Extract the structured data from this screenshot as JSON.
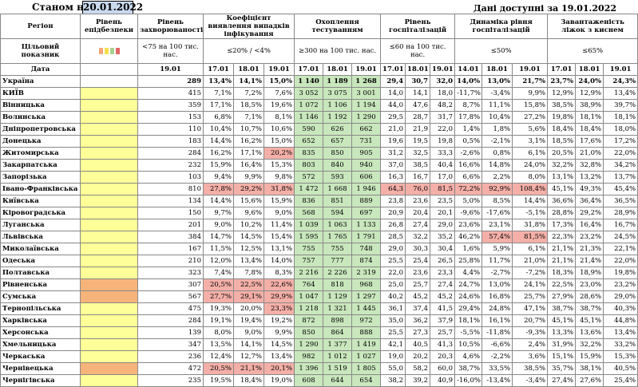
{
  "header": {
    "as_of_label": "Станом на",
    "as_of_date": "20.01.2022",
    "available_label": "Дані доступні за  19.01.2022"
  },
  "columns": {
    "region": "Регіон",
    "epi_level": "Рівень епідбезпеки",
    "incidence": "Рівень захворюваності",
    "detection": "Коефіцієнт виявлення випадків інфікування",
    "testing": "Охоплення тестуванням",
    "hosp": "Рівень госпіталізацій",
    "hosp_dyn": "Динаміка рівня госпіталізацій",
    "oxygen": "Завантаженість ліжок з киснем"
  },
  "targets": {
    "label": "Цільовий показник",
    "incidence": "<75 на 100 тис. нас.",
    "detection": "≤20% / <4%",
    "testing": "≥300 на 100 тис. нас.",
    "hosp": "≤60 на 100 тис. нас.",
    "hosp_dyn": "≤50%",
    "oxygen": "≤65%"
  },
  "legend_colors": [
    "#f3a77a",
    "#f4e04d",
    "#a9d08e",
    "#e06666"
  ],
  "dates_label": "Дата",
  "dates": {
    "incidence": "19.01",
    "three": [
      "17.01",
      "18.01",
      "19.01"
    ],
    "hosp_dyn": [
      "14.01",
      "18.01",
      "19.01"
    ]
  },
  "rows": [
    {
      "name": "Україна",
      "epi": "",
      "inc": "289",
      "det": [
        "13,4%",
        "14,1%",
        "15,0%"
      ],
      "test": [
        "1 140",
        "1 189",
        "1 268"
      ],
      "hosp": [
        "29,4",
        "30,7",
        "32,0"
      ],
      "dyn": [
        "14,0%",
        "13,0%",
        "21,7%"
      ],
      "oxy": [
        "23,7%",
        "24,0%",
        "24,3%"
      ]
    },
    {
      "name": "КИЇВ",
      "epi": "y",
      "inc": "415",
      "det": [
        "7,1%",
        "7,2%",
        "7,6%"
      ],
      "test": [
        "3 052",
        "3 075",
        "3 001"
      ],
      "hosp": [
        "14,0",
        "14,1",
        "18,0"
      ],
      "dyn": [
        "-11,7%",
        "-3,4%",
        "9,9%"
      ],
      "oxy": [
        "12,9%",
        "12,9%",
        "13,4%"
      ]
    },
    {
      "name": "Вінницька",
      "epi": "y",
      "inc": "359",
      "det": [
        "17,1%",
        "18,5%",
        "19,6%"
      ],
      "test": [
        "1 072",
        "1 106",
        "1 194"
      ],
      "hosp": [
        "44,0",
        "47,6",
        "48,2"
      ],
      "dyn": [
        "8,7%",
        "11,1%",
        "15,8%"
      ],
      "oxy": [
        "38,5%",
        "38,9%",
        "39,7%"
      ]
    },
    {
      "name": "Волинська",
      "epi": "y",
      "inc": "153",
      "det": [
        "6,8%",
        "7,1%",
        "8,1%"
      ],
      "test": [
        "1 146",
        "1 192",
        "1 290"
      ],
      "hosp": [
        "29,5",
        "28,7",
        "31,7"
      ],
      "dyn": [
        "17,8%",
        "10,4%",
        "27,2%"
      ],
      "oxy": [
        "19,8%",
        "18,1%",
        "18,1%"
      ]
    },
    {
      "name": "Дніпропетровська",
      "epi": "y",
      "inc": "110",
      "det": [
        "10,4%",
        "10,7%",
        "10,6%"
      ],
      "test": [
        "590",
        "626",
        "662"
      ],
      "hosp": [
        "21,0",
        "21,9",
        "22,0"
      ],
      "dyn": [
        "1,4%",
        "1,8%",
        "5,6%"
      ],
      "oxy": [
        "18,4%",
        "18,4%",
        "18,0%"
      ]
    },
    {
      "name": "Донецька",
      "epi": "y",
      "inc": "183",
      "det": [
        "14,4%",
        "16,2%",
        "15,0%"
      ],
      "test": [
        "652",
        "657",
        "731"
      ],
      "hosp": [
        "19,6",
        "19,5",
        "19,8"
      ],
      "dyn": [
        "0,5%",
        "-2,1%",
        "3,1%"
      ],
      "oxy": [
        "18,5%",
        "17,6%",
        "17,2%"
      ]
    },
    {
      "name": "Житомирська",
      "epi": "y",
      "inc": "284",
      "det": [
        "16,2%",
        "17,1%",
        "20,2%"
      ],
      "test": [
        "835",
        "850",
        "905"
      ],
      "hosp": [
        "31,2",
        "32,5",
        "33,3"
      ],
      "dyn": [
        "-2,6%",
        "0,8%",
        "6,1%"
      ],
      "oxy": [
        "20,5%",
        "21,0%",
        "22,0%"
      ]
    },
    {
      "name": "Закарпатська",
      "epi": "y",
      "inc": "232",
      "det": [
        "15,9%",
        "16,4%",
        "15,3%"
      ],
      "test": [
        "803",
        "840",
        "940"
      ],
      "hosp": [
        "37,0",
        "38,5",
        "40,4"
      ],
      "dyn": [
        "16,6%",
        "14,8%",
        "24,0%"
      ],
      "oxy": [
        "32,2%",
        "32,8%",
        "34,2%"
      ]
    },
    {
      "name": "Запорізька",
      "epi": "y",
      "inc": "103",
      "det": [
        "9,4%",
        "9,9%",
        "9,8%"
      ],
      "test": [
        "572",
        "593",
        "606"
      ],
      "hosp": [
        "16,3",
        "16,7",
        "17,0"
      ],
      "dyn": [
        "6,6%",
        "2,2%",
        "8,0%"
      ],
      "oxy": [
        "13,1%",
        "13,2%",
        "13,7%"
      ]
    },
    {
      "name": "Івано-Франківська",
      "epi": "y",
      "inc": "810",
      "det": [
        "27,8%",
        "29,2%",
        "31,8%"
      ],
      "test": [
        "1 472",
        "1 668",
        "1 946"
      ],
      "hosp": [
        "64,3",
        "76,0",
        "81,5"
      ],
      "dyn": [
        "72,2%",
        "92,9%",
        "108,4%"
      ],
      "oxy": [
        "45,1%",
        "49,3%",
        "45,4%"
      ]
    },
    {
      "name": "Київська",
      "epi": "y",
      "inc": "134",
      "det": [
        "14,4%",
        "15,6%",
        "15,9%"
      ],
      "test": [
        "836",
        "851",
        "889"
      ],
      "hosp": [
        "23,8",
        "23,6",
        "23,5"
      ],
      "dyn": [
        "5,0%",
        "8,5%",
        "14,4%"
      ],
      "oxy": [
        "36,6%",
        "36,4%",
        "36,5%"
      ]
    },
    {
      "name": "Кіровоградська",
      "epi": "y",
      "inc": "150",
      "det": [
        "9,7%",
        "9,6%",
        "9,0%"
      ],
      "test": [
        "568",
        "594",
        "697"
      ],
      "hosp": [
        "20,9",
        "20,4",
        "20,1"
      ],
      "dyn": [
        "-9,6%",
        "-17,6%",
        "-5,1%"
      ],
      "oxy": [
        "28,8%",
        "29,2%",
        "28,9%"
      ]
    },
    {
      "name": "Луганська",
      "epi": "y",
      "inc": "201",
      "det": [
        "9,0%",
        "10,2%",
        "11,4%"
      ],
      "test": [
        "1 039",
        "1 063",
        "1 133"
      ],
      "hosp": [
        "26,8",
        "27,4",
        "29,0"
      ],
      "dyn": [
        "23,6%",
        "23,1%",
        "31,8%"
      ],
      "oxy": [
        "17,3%",
        "16,4%",
        "16,7%"
      ]
    },
    {
      "name": "Львівська",
      "epi": "y",
      "inc": "384",
      "det": [
        "14,7%",
        "14,5%",
        "15,4%"
      ],
      "test": [
        "1 595",
        "1 765",
        "1 791"
      ],
      "hosp": [
        "28,5",
        "32,2",
        "35,2"
      ],
      "dyn": [
        "46,2%",
        "57,4%",
        "81,5%"
      ],
      "oxy": [
        "22,3%",
        "23,2%",
        "24,5%"
      ]
    },
    {
      "name": "Миколаївська",
      "epi": "y",
      "inc": "167",
      "det": [
        "11,5%",
        "12,5%",
        "13,1%"
      ],
      "test": [
        "755",
        "755",
        "748"
      ],
      "hosp": [
        "29,0",
        "30,3",
        "30,4"
      ],
      "dyn": [
        "1,6%",
        "5,9%",
        "6,1%"
      ],
      "oxy": [
        "21,1%",
        "21,3%",
        "22,1%"
      ]
    },
    {
      "name": "Одеська",
      "epi": "y",
      "inc": "210",
      "det": [
        "12,0%",
        "13,4%",
        "14,0%"
      ],
      "test": [
        "757",
        "777",
        "874"
      ],
      "hosp": [
        "25,5",
        "25,4",
        "26,5"
      ],
      "dyn": [
        "25,8%",
        "11,7%",
        "21,0%"
      ],
      "oxy": [
        "21,1%",
        "21,4%",
        "22,0%"
      ]
    },
    {
      "name": "Полтавська",
      "epi": "y",
      "inc": "323",
      "det": [
        "7,4%",
        "7,8%",
        "8,3%"
      ],
      "test": [
        "2 216",
        "2 226",
        "2 319"
      ],
      "hosp": [
        "22,0",
        "23,6",
        "23,3"
      ],
      "dyn": [
        "4,4%",
        "-2,7%",
        "-7,2%"
      ],
      "oxy": [
        "18,3%",
        "18,9%",
        "19,8%"
      ]
    },
    {
      "name": "Рівненська",
      "epi": "o",
      "inc": "307",
      "det": [
        "20,5%",
        "22,5%",
        "22,6%"
      ],
      "test": [
        "764",
        "818",
        "968"
      ],
      "hosp": [
        "25,0",
        "25,7",
        "27,4"
      ],
      "dyn": [
        "24,7%",
        "13,0%",
        "24,1%"
      ],
      "oxy": [
        "22,5%",
        "23,0%",
        "23,2%"
      ]
    },
    {
      "name": "Сумська",
      "epi": "o",
      "inc": "567",
      "det": [
        "27,7%",
        "29,1%",
        "29,9%"
      ],
      "test": [
        "1 047",
        "1 129",
        "1 297"
      ],
      "hosp": [
        "40,2",
        "45,2",
        "45,2"
      ],
      "dyn": [
        "24,6%",
        "16,8%",
        "25,7%"
      ],
      "oxy": [
        "27,9%",
        "28,6%",
        "29,0%"
      ]
    },
    {
      "name": "Тернопільська",
      "epi": "y",
      "inc": "475",
      "det": [
        "19,3%",
        "20,0%",
        "23,3%"
      ],
      "test": [
        "1 218",
        "1 321",
        "1 445"
      ],
      "hosp": [
        "36,1",
        "37,4",
        "41,5"
      ],
      "dyn": [
        "29,4%",
        "24,8%",
        "47,1%"
      ],
      "oxy": [
        "38,7%",
        "38,7%",
        "40,3%"
      ]
    },
    {
      "name": "Харківська",
      "epi": "y",
      "inc": "284",
      "det": [
        "19,1%",
        "19,4%",
        "19,2%"
      ],
      "test": [
        "872",
        "898",
        "972"
      ],
      "hosp": [
        "35,0",
        "36,2",
        "37,9"
      ],
      "dyn": [
        "18,1%",
        "16,1%",
        "20,7%"
      ],
      "oxy": [
        "45,1%",
        "45,1%",
        "44,8%"
      ]
    },
    {
      "name": "Херсонська",
      "epi": "y",
      "inc": "139",
      "det": [
        "8,0%",
        "9,0%",
        "9,9%"
      ],
      "test": [
        "850",
        "864",
        "888"
      ],
      "hosp": [
        "25,5",
        "27,3",
        "25,7"
      ],
      "dyn": [
        "-5,5%",
        "-11,8%",
        "-9,3%"
      ],
      "oxy": [
        "13,3%",
        "13,6%",
        "13,4%"
      ]
    },
    {
      "name": "Хмельницька",
      "epi": "y",
      "inc": "347",
      "det": [
        "13,5%",
        "14,1%",
        "14,5%"
      ],
      "test": [
        "1 290",
        "1 377",
        "1 419"
      ],
      "hosp": [
        "42,1",
        "40,5",
        "41,3"
      ],
      "dyn": [
        "10,5%",
        "-6,6%",
        "2,4%"
      ],
      "oxy": [
        "31,9%",
        "32,2%",
        "33,2%"
      ]
    },
    {
      "name": "Черкаська",
      "epi": "y",
      "inc": "236",
      "det": [
        "12,4%",
        "12,7%",
        "13,4%"
      ],
      "test": [
        "982",
        "1 012",
        "1 027"
      ],
      "hosp": [
        "19,0",
        "20,2",
        "20,3"
      ],
      "dyn": [
        "4,6%",
        "-2,2%",
        "3,6%"
      ],
      "oxy": [
        "15,1%",
        "15,9%",
        "15,3%"
      ]
    },
    {
      "name": "Чернівецька",
      "epi": "o",
      "inc": "472",
      "det": [
        "20,5%",
        "21,1%",
        "20,1%"
      ],
      "test": [
        "1 396",
        "1 519",
        "1 805"
      ],
      "hosp": [
        "55,0",
        "58,2",
        "60,0"
      ],
      "dyn": [
        "38,7%",
        "33,5%",
        "38,5%"
      ],
      "oxy": [
        "35,7%",
        "38,1%",
        "40,5%"
      ]
    },
    {
      "name": "Чернігівська",
      "epi": "y",
      "inc": "235",
      "det": [
        "19,5%",
        "18,4%",
        "19,0%"
      ],
      "test": [
        "608",
        "644",
        "654"
      ],
      "hosp": [
        "38,2",
        "39,2",
        "40,9"
      ],
      "dyn": [
        "-16,0%",
        "-13,4%",
        "-3,4%"
      ],
      "oxy": [
        "27,4%",
        "27,6%",
        "25,4%"
      ]
    }
  ]
}
